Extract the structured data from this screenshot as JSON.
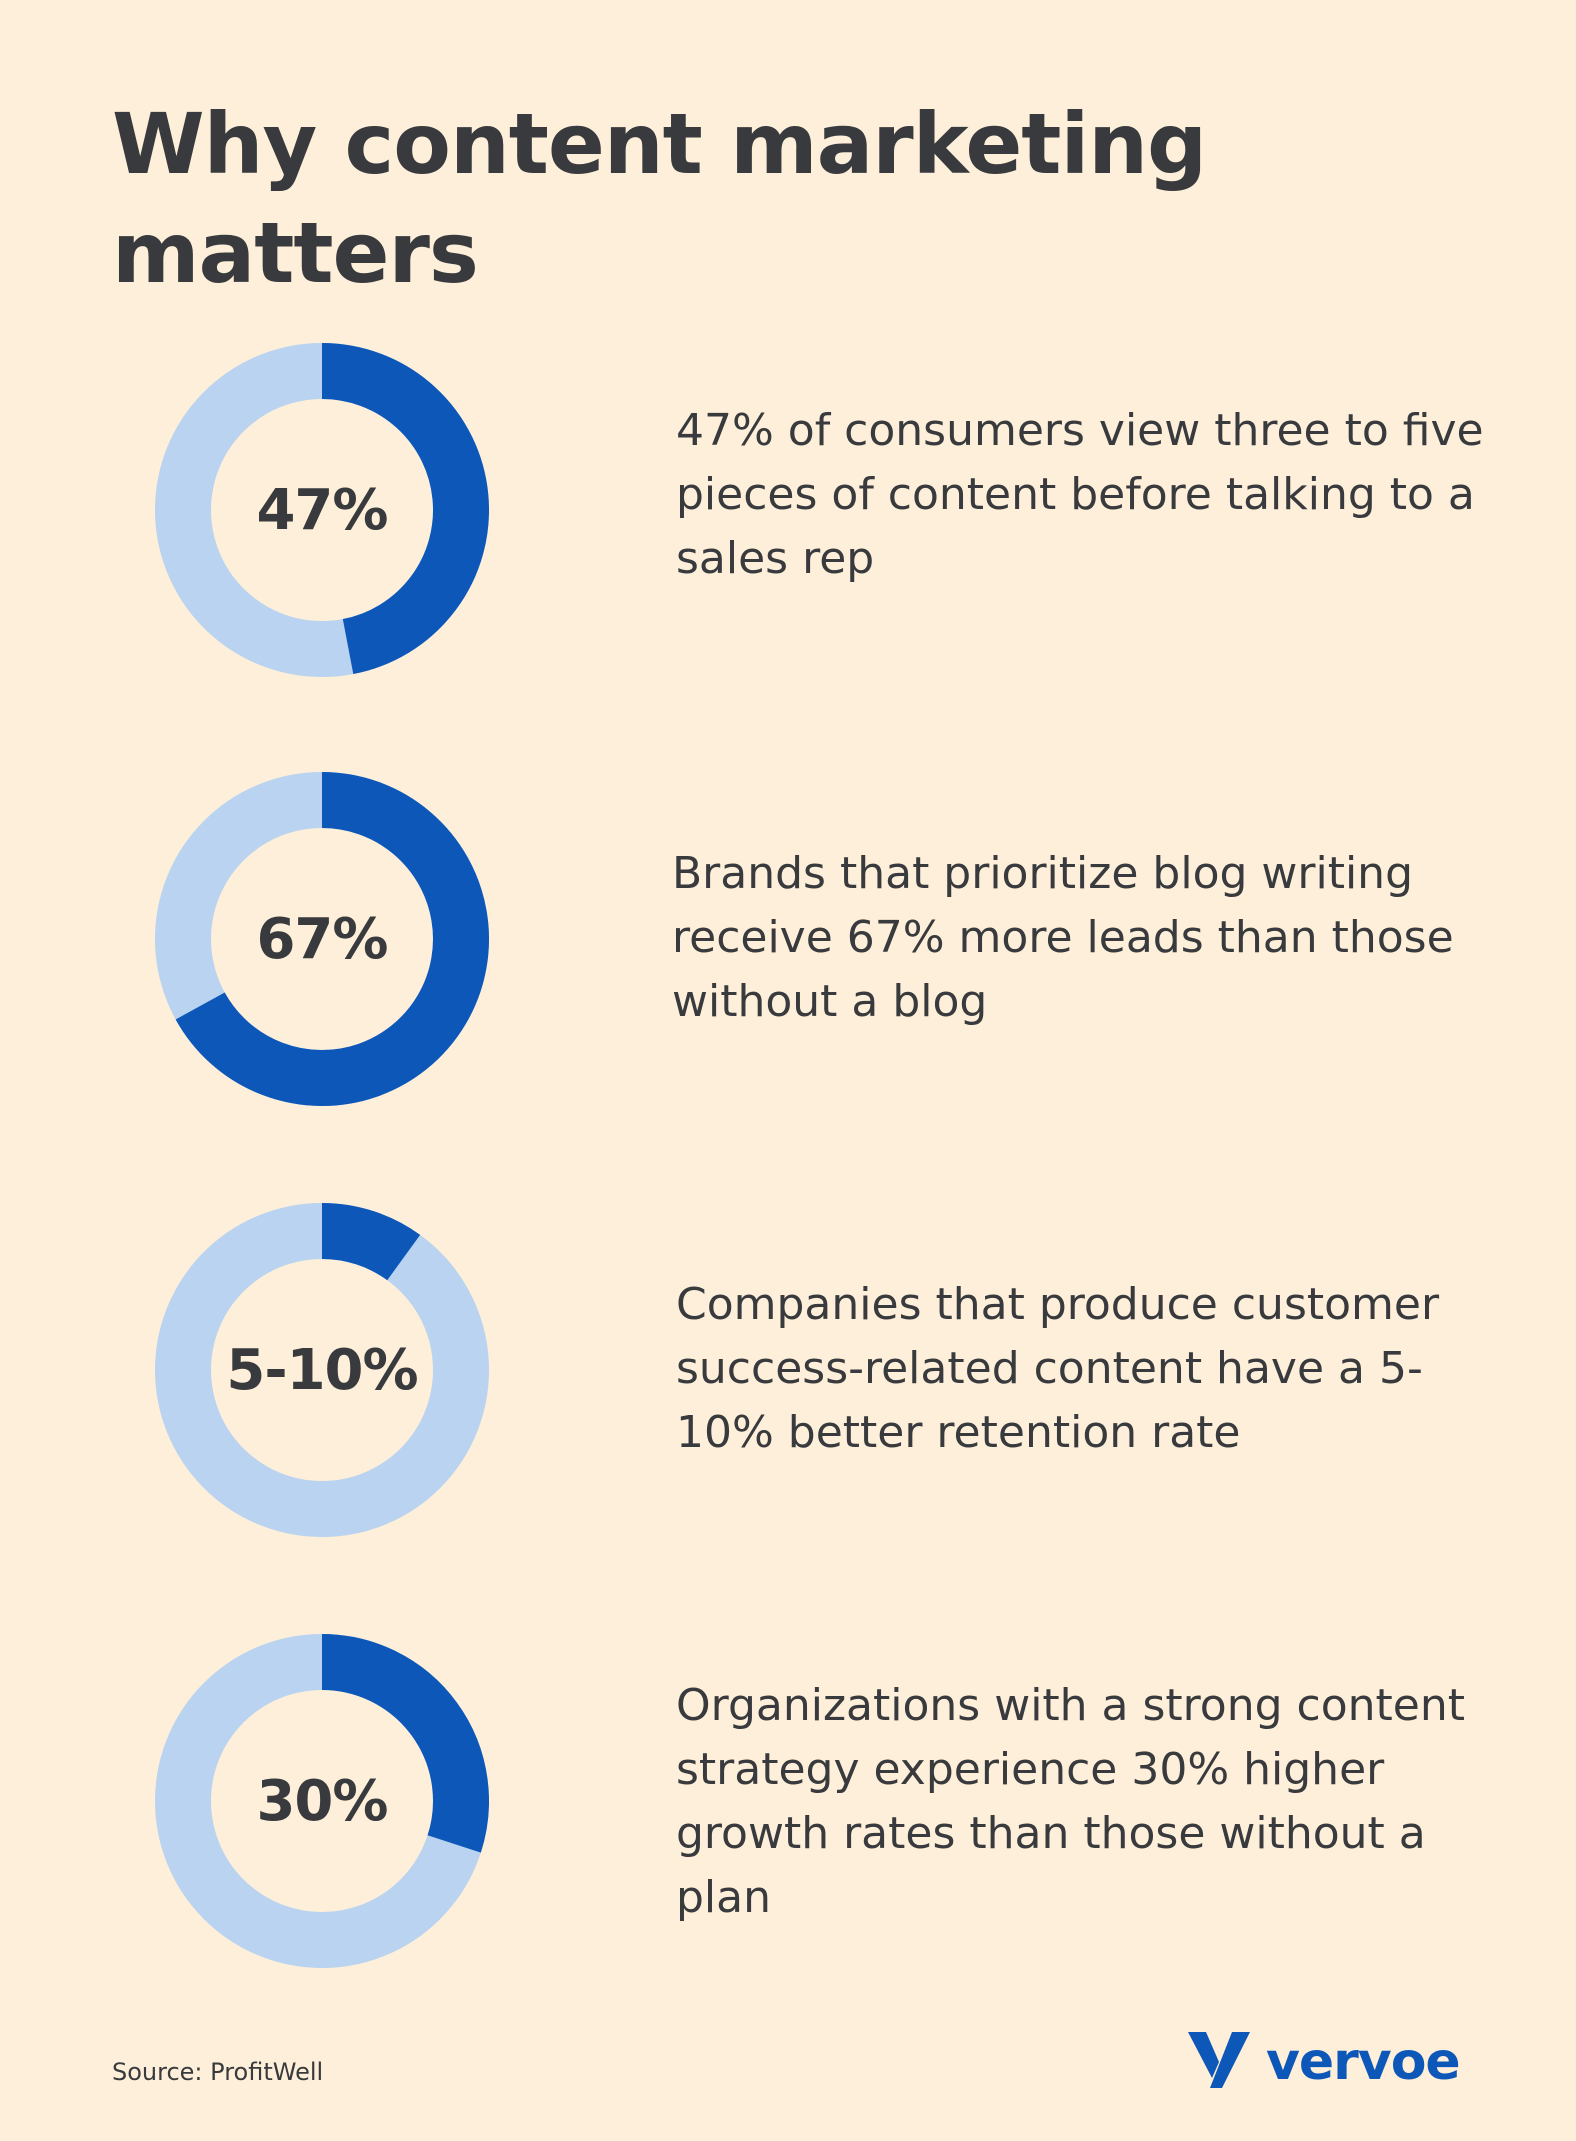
{
  "title": "Why content marketing matters",
  "colors": {
    "background": "#fdefd9",
    "accent": "#0d57b8",
    "track": "#b9d3f0",
    "text": "#383a3d"
  },
  "chart_data": [
    {
      "type": "pie",
      "label": "47%",
      "value": 47,
      "description": "47% of consumers view three to five pieces of content before talking to a sales rep"
    },
    {
      "type": "pie",
      "label": "67%",
      "value": 67,
      "description": "Brands that prioritize blog writing receive 67% more leads than those without a blog"
    },
    {
      "type": "pie",
      "label": "5-10%",
      "value": 10,
      "description": "Companies that produce customer success-related content have a 5-10% better retention rate"
    },
    {
      "type": "pie",
      "label": "30%",
      "value": 30,
      "description": "Organizations with a strong content strategy experience 30% higher growth rates than those without a plan"
    }
  ],
  "source": "Source: ProfitWell",
  "logo": {
    "text": "vervoe",
    "icon": "vervoe-v-icon"
  }
}
